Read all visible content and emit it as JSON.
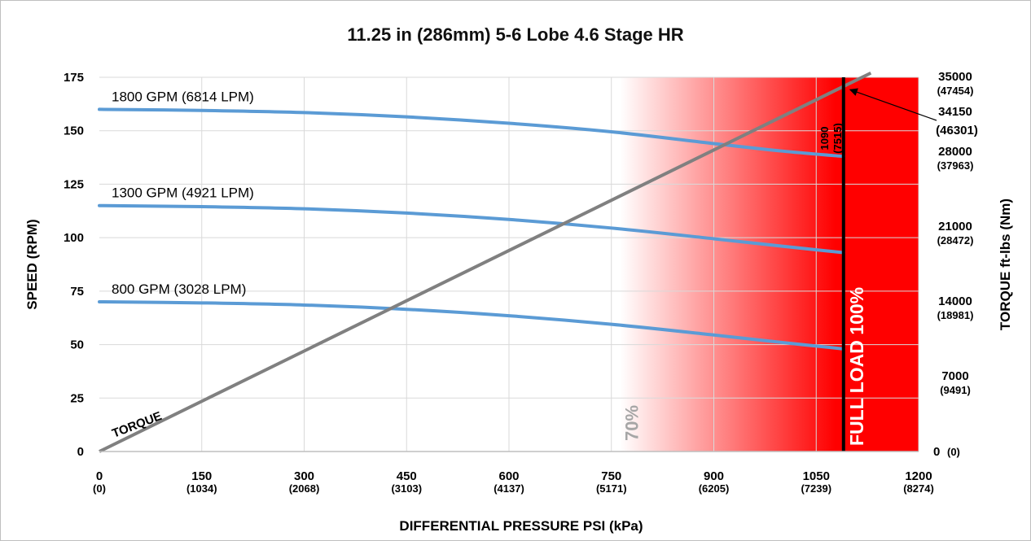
{
  "chart_data": {
    "type": "line",
    "title": "11.25 in (286mm) 5-6 Lobe 4.6 Stage HR",
    "xlabel": "DIFFERENTIAL PRESSURE PSI (kPa)",
    "ylabel": "SPEED (RPM)",
    "y2label": "TORQUE ft-lbs (Nm)",
    "xlim": [
      0,
      1200
    ],
    "ylim": [
      0,
      175
    ],
    "y2lim": [
      0,
      35000
    ],
    "grid": true,
    "x_ticks": [
      {
        "value": 0,
        "main": "0",
        "sub": "(0)"
      },
      {
        "value": 150,
        "main": "150",
        "sub": "(1034)"
      },
      {
        "value": 300,
        "main": "300",
        "sub": "(2068)"
      },
      {
        "value": 450,
        "main": "450",
        "sub": "(3103)"
      },
      {
        "value": 600,
        "main": "600",
        "sub": "(4137)"
      },
      {
        "value": 750,
        "main": "750",
        "sub": "(5171)"
      },
      {
        "value": 900,
        "main": "900",
        "sub": "(6205)"
      },
      {
        "value": 1050,
        "main": "1050",
        "sub": "(7239)"
      },
      {
        "value": 1200,
        "main": "1200",
        "sub": "(8274)"
      }
    ],
    "y_ticks": [
      0,
      25,
      50,
      75,
      100,
      125,
      150,
      175
    ],
    "y2_ticks": [
      {
        "value": 0,
        "main": "0",
        "sub": "(0)"
      },
      {
        "value": 7000,
        "main": "7000",
        "sub": "(9491)"
      },
      {
        "value": 14000,
        "main": "14000",
        "sub": "(18981)"
      },
      {
        "value": 21000,
        "main": "21000",
        "sub": "(28472)"
      },
      {
        "value": 28000,
        "main": "28000",
        "sub": "(37963)"
      },
      {
        "value": 35000,
        "main": "35000",
        "sub": "(47454)"
      }
    ],
    "series": [
      {
        "name": "1800 GPM (6814 LPM)",
        "x": [
          0,
          150,
          300,
          450,
          600,
          750,
          900,
          1000,
          1090
        ],
        "y": [
          160,
          159.5,
          158.5,
          156.5,
          153.5,
          149.5,
          144,
          140.5,
          138
        ]
      },
      {
        "name": "1300 GPM (4921 LPM)",
        "x": [
          0,
          150,
          300,
          450,
          600,
          750,
          900,
          1000,
          1090
        ],
        "y": [
          115,
          114.5,
          113.5,
          111.5,
          108.5,
          104.5,
          99.5,
          96,
          93
        ]
      },
      {
        "name": "800 GPM (3028 LPM)",
        "x": [
          0,
          150,
          300,
          450,
          600,
          750,
          900,
          1000,
          1090
        ],
        "y": [
          70,
          69.5,
          68.5,
          66.5,
          63.5,
          59.5,
          54.5,
          51,
          48
        ]
      }
    ],
    "torque_line": {
      "name": "TORQUE",
      "x": [
        0,
        1090,
        1130
      ],
      "y2": [
        0,
        34150,
        35400
      ]
    },
    "full_load": {
      "x": 1090,
      "label": "FULL LOAD 100%",
      "value_main": "1090",
      "value_sub": "(7515)"
    },
    "zone_70": {
      "x_start": 763,
      "label": "70%",
      "colors": {
        "fade_start": "#ffffff",
        "solid": "#ff0000"
      }
    },
    "annotation": {
      "main": "34150",
      "sub": "(46301)",
      "target_x": 1090,
      "target_y2": 34150
    },
    "colors": {
      "speed": "#5b9bd5",
      "torque": "#808080",
      "full_load_line": "#000000",
      "pct70": "#a6a6a6"
    }
  }
}
